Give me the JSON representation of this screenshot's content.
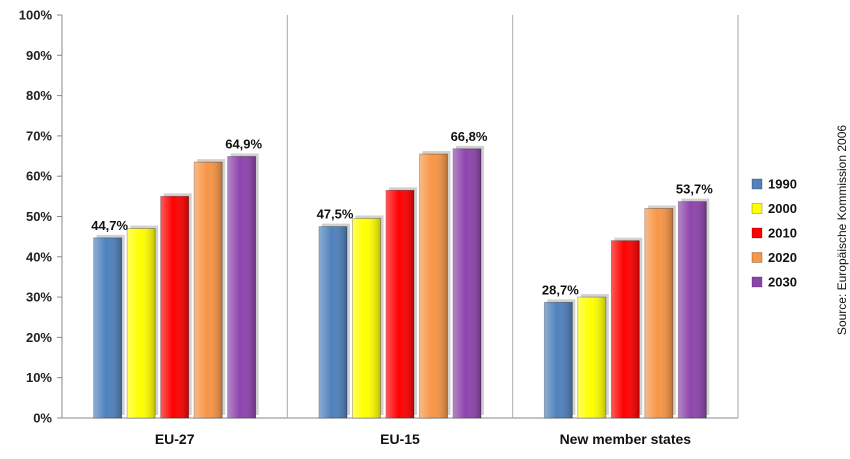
{
  "chart_data": {
    "type": "bar",
    "categories": [
      "EU-27",
      "EU-15",
      "New member states"
    ],
    "series": [
      {
        "name": "1990",
        "values": [
          44.7,
          47.5,
          28.7
        ],
        "color": "#4f81bd"
      },
      {
        "name": "2000",
        "values": [
          47.0,
          49.5,
          30.0
        ],
        "color": "#ffff00"
      },
      {
        "name": "2010",
        "values": [
          55.0,
          56.5,
          44.0
        ],
        "color": "#ff0000"
      },
      {
        "name": "2020",
        "values": [
          63.5,
          65.5,
          52.0
        ],
        "color": "#f79646"
      },
      {
        "name": "2030",
        "values": [
          64.9,
          66.8,
          53.7
        ],
        "color": "#8e44ad"
      }
    ],
    "data_labels": [
      {
        "category": 0,
        "series": 0,
        "text": "44,7%"
      },
      {
        "category": 0,
        "series": 4,
        "text": "64,9%"
      },
      {
        "category": 1,
        "series": 0,
        "text": "47,5%"
      },
      {
        "category": 1,
        "series": 4,
        "text": "66,8%"
      },
      {
        "category": 2,
        "series": 0,
        "text": "28,7%"
      },
      {
        "category": 2,
        "series": 4,
        "text": "53,7%"
      }
    ],
    "y_ticks": [
      "0%",
      "10%",
      "20%",
      "30%",
      "40%",
      "50%",
      "60%",
      "70%",
      "80%",
      "90%",
      "100%"
    ],
    "ylim": [
      0,
      100
    ],
    "title": "",
    "xlabel": "",
    "ylabel": "",
    "legend_position": "right",
    "grid": false,
    "source": "Source: Europäische Kommission 2006"
  }
}
